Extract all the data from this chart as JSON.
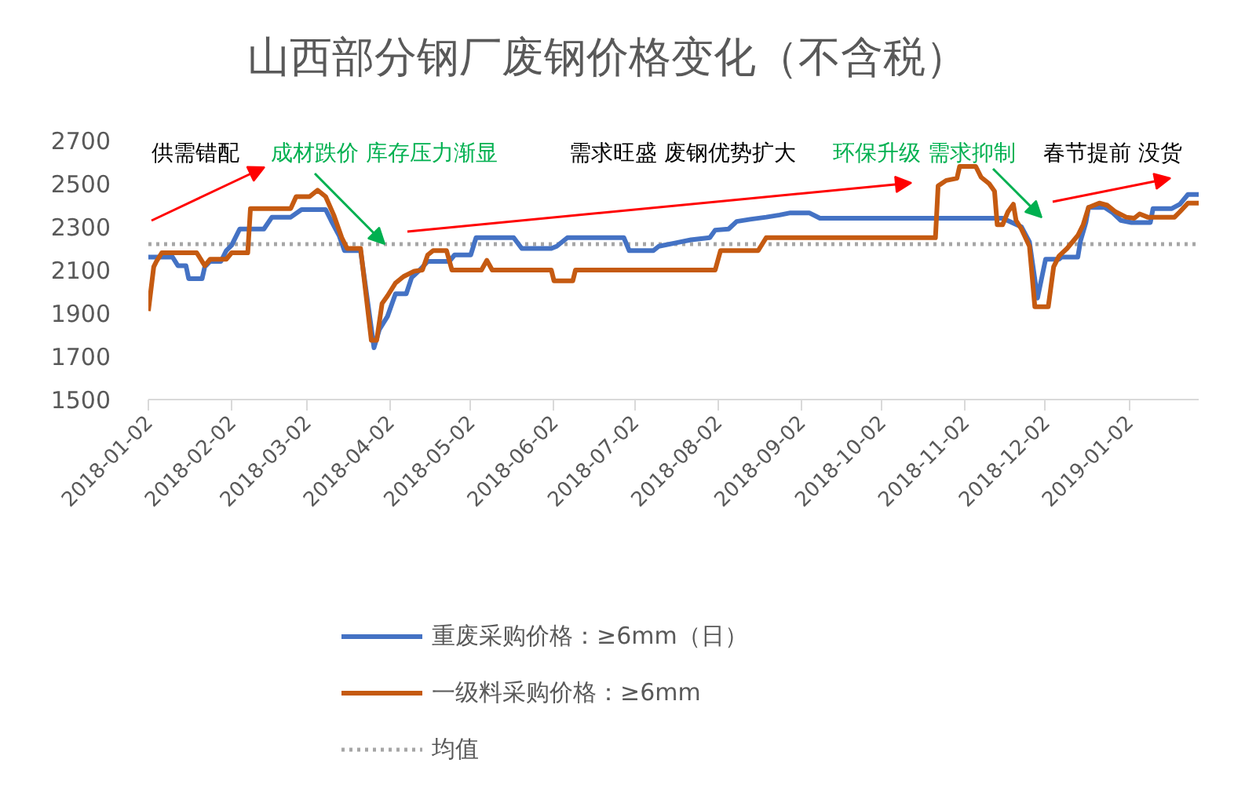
{
  "chart_data": {
    "type": "line",
    "title": "山西部分钢厂废钢价格变化（不含税）",
    "xlim": [
      "2018-01-02",
      "2019-01-28"
    ],
    "xticks": [
      "2018-01-02",
      "2018-02-02",
      "2018-03-02",
      "2018-04-02",
      "2018-05-02",
      "2018-06-02",
      "2018-07-02",
      "2018-08-02",
      "2018-09-02",
      "2018-10-02",
      "2018-11-02",
      "2018-12-02",
      "2019-01-02"
    ],
    "ylim": [
      1500,
      2700
    ],
    "yticks": [
      1500,
      1700,
      1900,
      2100,
      2300,
      2500,
      2700
    ],
    "grid": false,
    "legend": "bottom",
    "line_style": "solid",
    "series": [
      {
        "name": "重废采购价格：≥6mm（日）",
        "color": "#4472c4",
        "x": [
          "2018-01-02",
          "2018-01-11",
          "2018-01-13",
          "2018-01-16",
          "2018-01-17",
          "2018-01-22",
          "2018-01-23",
          "2018-01-25",
          "2018-01-29",
          "2018-01-31",
          "2018-02-02",
          "2018-02-05",
          "2018-02-14",
          "2018-02-17",
          "2018-02-24",
          "2018-02-28",
          "2018-03-09",
          "2018-03-11",
          "2018-03-14",
          "2018-03-16",
          "2018-03-22",
          "2018-03-27",
          "2018-03-29",
          "2018-04-01",
          "2018-04-04",
          "2018-04-08",
          "2018-04-10",
          "2018-04-13",
          "2018-04-16",
          "2018-04-24",
          "2018-04-26",
          "2018-05-02",
          "2018-05-04",
          "2018-05-18",
          "2018-05-21",
          "2018-06-01",
          "2018-06-03",
          "2018-06-07",
          "2018-06-28",
          "2018-06-30",
          "2018-07-09",
          "2018-07-11",
          "2018-07-17",
          "2018-07-23",
          "2018-07-30",
          "2018-08-01",
          "2018-08-06",
          "2018-08-09",
          "2018-08-14",
          "2018-08-20",
          "2018-08-25",
          "2018-08-29",
          "2018-09-05",
          "2018-09-09",
          "2018-11-16",
          "2018-11-23",
          "2018-11-26",
          "2018-11-29",
          "2018-12-02",
          "2018-12-07",
          "2018-12-08",
          "2018-12-14",
          "2018-12-15",
          "2018-12-17",
          "2018-12-18",
          "2018-12-24",
          "2018-12-27",
          "2018-12-30",
          "2019-01-03",
          "2019-01-10",
          "2019-01-11",
          "2019-01-18",
          "2019-01-21",
          "2019-01-24",
          "2019-01-28"
        ],
        "values": [
          2160,
          2160,
          2120,
          2120,
          2060,
          2060,
          2115,
          2140,
          2140,
          2190,
          2215,
          2290,
          2290,
          2345,
          2345,
          2380,
          2380,
          2330,
          2260,
          2190,
          2190,
          1740,
          1825,
          1885,
          1990,
          1990,
          2065,
          2100,
          2140,
          2140,
          2170,
          2170,
          2250,
          2250,
          2200,
          2200,
          2210,
          2250,
          2250,
          2190,
          2190,
          2210,
          2225,
          2240,
          2250,
          2285,
          2290,
          2325,
          2335,
          2345,
          2355,
          2365,
          2365,
          2340,
          2340,
          2300,
          2230,
          1970,
          2150,
          2150,
          2160,
          2160,
          2235,
          2320,
          2390,
          2390,
          2365,
          2330,
          2320,
          2320,
          2385,
          2385,
          2405,
          2450,
          2450
        ]
      },
      {
        "name": "一级料采购价格：≥6mm",
        "color": "#c55a11",
        "x": [
          "2018-01-02",
          "2018-01-04",
          "2018-01-05",
          "2018-01-07",
          "2018-01-20",
          "2018-01-23",
          "2018-01-25",
          "2018-01-31",
          "2018-02-02",
          "2018-02-08",
          "2018-02-09",
          "2018-02-24",
          "2018-02-26",
          "2018-03-03",
          "2018-03-06",
          "2018-03-09",
          "2018-03-12",
          "2018-03-15",
          "2018-03-17",
          "2018-03-22",
          "2018-03-26",
          "2018-03-28",
          "2018-03-30",
          "2018-04-01",
          "2018-04-04",
          "2018-04-07",
          "2018-04-11",
          "2018-04-14",
          "2018-04-16",
          "2018-04-18",
          "2018-04-23",
          "2018-04-25",
          "2018-05-06",
          "2018-05-08",
          "2018-05-10",
          "2018-06-01",
          "2018-06-02",
          "2018-06-09",
          "2018-06-10",
          "2018-08-01",
          "2018-08-03",
          "2018-08-17",
          "2018-08-20",
          "2018-10-22",
          "2018-10-23",
          "2018-10-26",
          "2018-10-30",
          "2018-10-31",
          "2018-11-06",
          "2018-11-08",
          "2018-11-11",
          "2018-11-13",
          "2018-11-14",
          "2018-11-16",
          "2018-11-18",
          "2018-11-20",
          "2018-11-21",
          "2018-11-23",
          "2018-11-26",
          "2018-11-28",
          "2018-12-03",
          "2018-12-05",
          "2018-12-07",
          "2018-12-10",
          "2018-12-14",
          "2018-12-16",
          "2018-12-18",
          "2018-12-22",
          "2018-12-25",
          "2018-12-28",
          "2019-01-01",
          "2019-01-04",
          "2019-01-06",
          "2019-01-09",
          "2019-01-19",
          "2019-01-21",
          "2019-01-24",
          "2019-01-28"
        ],
        "values": [
          1910,
          2115,
          2140,
          2180,
          2180,
          2120,
          2150,
          2150,
          2180,
          2180,
          2385,
          2385,
          2440,
          2440,
          2470,
          2440,
          2355,
          2250,
          2200,
          2200,
          1775,
          1775,
          1945,
          1980,
          2040,
          2070,
          2095,
          2100,
          2170,
          2190,
          2190,
          2100,
          2100,
          2145,
          2100,
          2100,
          2050,
          2050,
          2100,
          2100,
          2190,
          2190,
          2250,
          2250,
          2490,
          2515,
          2525,
          2580,
          2580,
          2530,
          2500,
          2465,
          2310,
          2310,
          2370,
          2405,
          2330,
          2290,
          2210,
          1930,
          1930,
          2115,
          2165,
          2200,
          2260,
          2310,
          2390,
          2410,
          2400,
          2370,
          2345,
          2340,
          2360,
          2345,
          2345,
          2370,
          2410,
          2410
        ]
      }
    ],
    "ref_lines": [
      {
        "axis": "y",
        "value": 2220,
        "label": "均值",
        "color": "#a6a6a6",
        "line_style": "dotted"
      }
    ],
    "annotations": [
      "供需错配",
      {
        "text": "成材跌价 库存压力渐显",
        "x": "2018-03-31",
        "y": 2220
      },
      "需求旺盛 废钢优势扩大",
      "环保升级 需求抑制",
      "春节提前 没货"
    ]
  }
}
